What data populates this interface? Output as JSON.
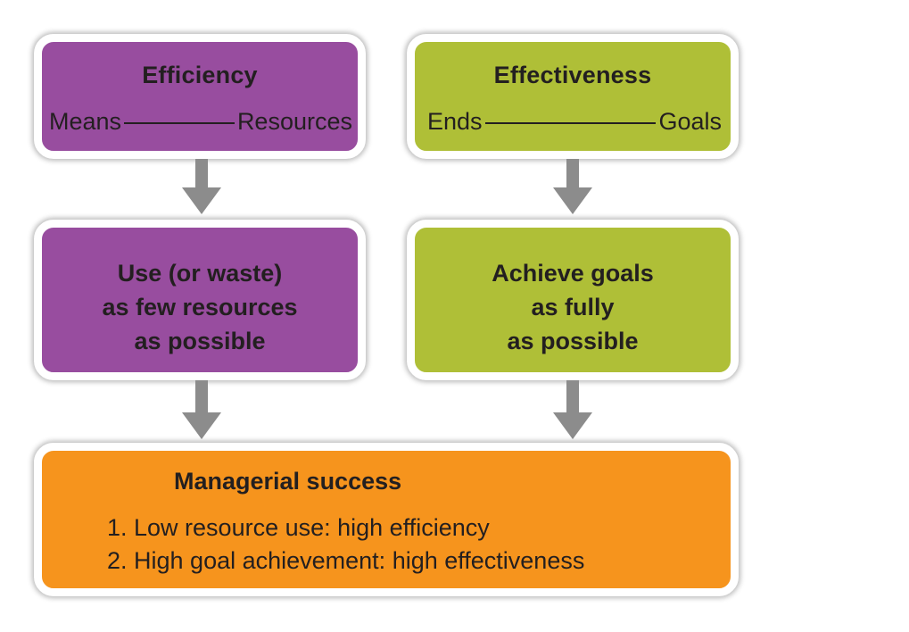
{
  "efficiency": {
    "title": "Efficiency",
    "left_term": "Means",
    "right_term": "Resources",
    "color": "#984d9f"
  },
  "effectiveness": {
    "title": "Effectiveness",
    "left_term": "Ends",
    "right_term": "Goals",
    "color": "#afbf37"
  },
  "efficiency_action": {
    "lines": [
      "Use (or waste)",
      "as few resources",
      "as possible"
    ]
  },
  "effectiveness_action": {
    "lines": [
      "Achieve goals",
      "as fully",
      "as possible"
    ]
  },
  "success": {
    "title": "Managerial success",
    "items": [
      "1. Low resource use: high efficiency",
      "2. High goal achievement: high effectiveness"
    ],
    "color": "#f6941d"
  },
  "arrow_color": "#8c8c8c"
}
